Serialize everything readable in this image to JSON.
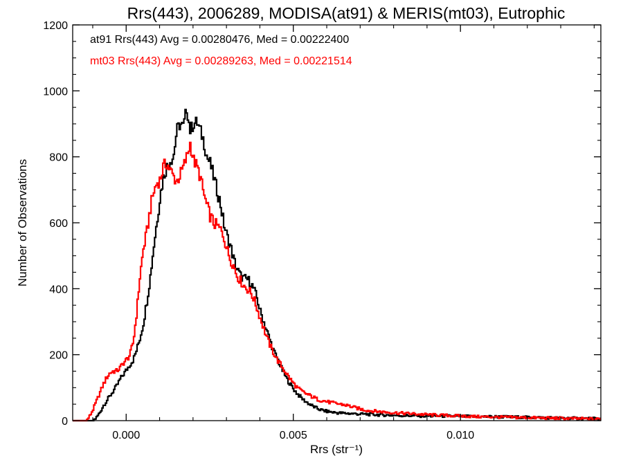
{
  "chart_data": {
    "type": "histogram",
    "title": "Rrs(443), 2006289, MODISA(at91) & MERIS(mt03), Eutrophic",
    "xlabel": "Rrs (str⁻¹)",
    "ylabel": "Number of Observations",
    "xlim": [
      -0.0016,
      0.0142
    ],
    "ylim": [
      0,
      1200
    ],
    "xticks": [
      0.0,
      0.005,
      0.01
    ],
    "xtick_labels": [
      "0.000",
      "0.005",
      "0.010"
    ],
    "yticks": [
      0,
      200,
      400,
      600,
      800,
      1000,
      1200
    ],
    "ytick_labels": [
      "0",
      "200",
      "400",
      "600",
      "800",
      "1000",
      "1200"
    ],
    "grid": false,
    "legend_position": "top-left",
    "series": [
      {
        "name": "at91",
        "legend": "at91 Rrs(443) Avg = 0.00280476, Med = 0.00222400",
        "color": "#000000",
        "points": [
          [
            -0.0016,
            0
          ],
          [
            -0.001,
            0
          ],
          [
            -0.0009,
            10
          ],
          [
            -0.0008,
            25
          ],
          [
            -0.0007,
            45
          ],
          [
            -0.0006,
            60
          ],
          [
            -0.0005,
            75
          ],
          [
            -0.0004,
            90
          ],
          [
            -0.0003,
            105
          ],
          [
            -0.0002,
            125
          ],
          [
            -0.0001,
            140
          ],
          [
            0.0,
            155
          ],
          [
            0.0001,
            170
          ],
          [
            0.0002,
            185
          ],
          [
            0.0003,
            215
          ],
          [
            0.0004,
            250
          ],
          [
            0.0005,
            295
          ],
          [
            0.0006,
            360
          ],
          [
            0.0007,
            430
          ],
          [
            0.0008,
            520
          ],
          [
            0.0009,
            600
          ],
          [
            0.001,
            680
          ],
          [
            0.0011,
            740
          ],
          [
            0.0012,
            770
          ],
          [
            0.0013,
            790
          ],
          [
            0.0014,
            800
          ],
          [
            0.0015,
            880
          ],
          [
            0.0016,
            900
          ],
          [
            0.0017,
            890
          ],
          [
            0.0018,
            950
          ],
          [
            0.0019,
            880
          ],
          [
            0.002,
            900
          ],
          [
            0.0021,
            905
          ],
          [
            0.0022,
            880
          ],
          [
            0.0023,
            850
          ],
          [
            0.0024,
            800
          ],
          [
            0.0025,
            780
          ],
          [
            0.0026,
            740
          ],
          [
            0.0027,
            700
          ],
          [
            0.0028,
            660
          ],
          [
            0.0029,
            600
          ],
          [
            0.003,
            560
          ],
          [
            0.0031,
            530
          ],
          [
            0.0032,
            490
          ],
          [
            0.0033,
            460
          ],
          [
            0.0034,
            440
          ],
          [
            0.0035,
            430
          ],
          [
            0.0036,
            430
          ],
          [
            0.0037,
            420
          ],
          [
            0.0038,
            400
          ],
          [
            0.0039,
            370
          ],
          [
            0.004,
            330
          ],
          [
            0.0041,
            300
          ],
          [
            0.0042,
            270
          ],
          [
            0.0043,
            240
          ],
          [
            0.0044,
            210
          ],
          [
            0.0045,
            190
          ],
          [
            0.0046,
            165
          ],
          [
            0.0047,
            145
          ],
          [
            0.0048,
            125
          ],
          [
            0.0049,
            110
          ],
          [
            0.005,
            95
          ],
          [
            0.0051,
            82
          ],
          [
            0.0052,
            72
          ],
          [
            0.0053,
            62
          ],
          [
            0.0054,
            55
          ],
          [
            0.0055,
            48
          ],
          [
            0.0056,
            42
          ],
          [
            0.0057,
            37
          ],
          [
            0.0058,
            33
          ],
          [
            0.0059,
            30
          ],
          [
            0.006,
            28
          ],
          [
            0.0062,
            25
          ],
          [
            0.0064,
            23
          ],
          [
            0.0066,
            22
          ],
          [
            0.0068,
            21
          ],
          [
            0.007,
            20
          ],
          [
            0.0075,
            18
          ],
          [
            0.008,
            16
          ],
          [
            0.0085,
            15
          ],
          [
            0.009,
            14
          ],
          [
            0.0095,
            14
          ],
          [
            0.01,
            13
          ],
          [
            0.0105,
            12
          ],
          [
            0.011,
            12
          ],
          [
            0.0115,
            11
          ],
          [
            0.012,
            10
          ],
          [
            0.0125,
            9
          ],
          [
            0.013,
            8
          ],
          [
            0.0135,
            7
          ],
          [
            0.014,
            6
          ],
          [
            0.0142,
            5
          ]
        ]
      },
      {
        "name": "mt03",
        "legend": "mt03 Rrs(443) Avg = 0.00289263, Med = 0.00221514",
        "color": "#ff0000",
        "points": [
          [
            -0.0016,
            0
          ],
          [
            -0.0012,
            0
          ],
          [
            -0.0011,
            15
          ],
          [
            -0.001,
            35
          ],
          [
            -0.0009,
            60
          ],
          [
            -0.0008,
            85
          ],
          [
            -0.0007,
            110
          ],
          [
            -0.0006,
            130
          ],
          [
            -0.0005,
            145
          ],
          [
            -0.0004,
            150
          ],
          [
            -0.0003,
            150
          ],
          [
            -0.0002,
            160
          ],
          [
            -0.0001,
            175
          ],
          [
            0.0,
            185
          ],
          [
            0.0001,
            200
          ],
          [
            0.0002,
            240
          ],
          [
            0.0003,
            330
          ],
          [
            0.0004,
            440
          ],
          [
            0.0005,
            520
          ],
          [
            0.0006,
            570
          ],
          [
            0.0007,
            640
          ],
          [
            0.0008,
            690
          ],
          [
            0.0009,
            720
          ],
          [
            0.001,
            730
          ],
          [
            0.0011,
            770
          ],
          [
            0.0012,
            780
          ],
          [
            0.0013,
            760
          ],
          [
            0.0014,
            740
          ],
          [
            0.0015,
            725
          ],
          [
            0.0016,
            745
          ],
          [
            0.0017,
            770
          ],
          [
            0.0018,
            800
          ],
          [
            0.0019,
            840
          ],
          [
            0.002,
            790
          ],
          [
            0.0021,
            770
          ],
          [
            0.0022,
            740
          ],
          [
            0.0023,
            690
          ],
          [
            0.0024,
            650
          ],
          [
            0.0025,
            620
          ],
          [
            0.0026,
            600
          ],
          [
            0.0027,
            590
          ],
          [
            0.0028,
            580
          ],
          [
            0.0029,
            560
          ],
          [
            0.003,
            520
          ],
          [
            0.0031,
            490
          ],
          [
            0.0032,
            470
          ],
          [
            0.0033,
            440
          ],
          [
            0.0034,
            425
          ],
          [
            0.0035,
            410
          ],
          [
            0.0036,
            400
          ],
          [
            0.0037,
            390
          ],
          [
            0.0038,
            370
          ],
          [
            0.0039,
            340
          ],
          [
            0.004,
            310
          ],
          [
            0.0041,
            280
          ],
          [
            0.0042,
            250
          ],
          [
            0.0043,
            225
          ],
          [
            0.0044,
            205
          ],
          [
            0.0045,
            185
          ],
          [
            0.0046,
            170
          ],
          [
            0.0047,
            155
          ],
          [
            0.0048,
            140
          ],
          [
            0.0049,
            125
          ],
          [
            0.005,
            112
          ],
          [
            0.0051,
            100
          ],
          [
            0.0052,
            92
          ],
          [
            0.0053,
            85
          ],
          [
            0.0054,
            80
          ],
          [
            0.0055,
            75
          ],
          [
            0.0056,
            70
          ],
          [
            0.0057,
            65
          ],
          [
            0.0058,
            62
          ],
          [
            0.0059,
            60
          ],
          [
            0.006,
            57
          ],
          [
            0.0062,
            53
          ],
          [
            0.0064,
            50
          ],
          [
            0.0066,
            46
          ],
          [
            0.0068,
            40
          ],
          [
            0.007,
            35
          ],
          [
            0.0072,
            31
          ],
          [
            0.0075,
            28
          ],
          [
            0.008,
            24
          ],
          [
            0.0085,
            21
          ],
          [
            0.009,
            18
          ],
          [
            0.0095,
            16
          ],
          [
            0.01,
            14
          ],
          [
            0.0105,
            12
          ],
          [
            0.011,
            11
          ],
          [
            0.0115,
            10
          ],
          [
            0.012,
            9
          ],
          [
            0.0125,
            8
          ],
          [
            0.013,
            7
          ],
          [
            0.0135,
            6
          ],
          [
            0.014,
            5
          ],
          [
            0.0142,
            5
          ]
        ]
      }
    ]
  }
}
